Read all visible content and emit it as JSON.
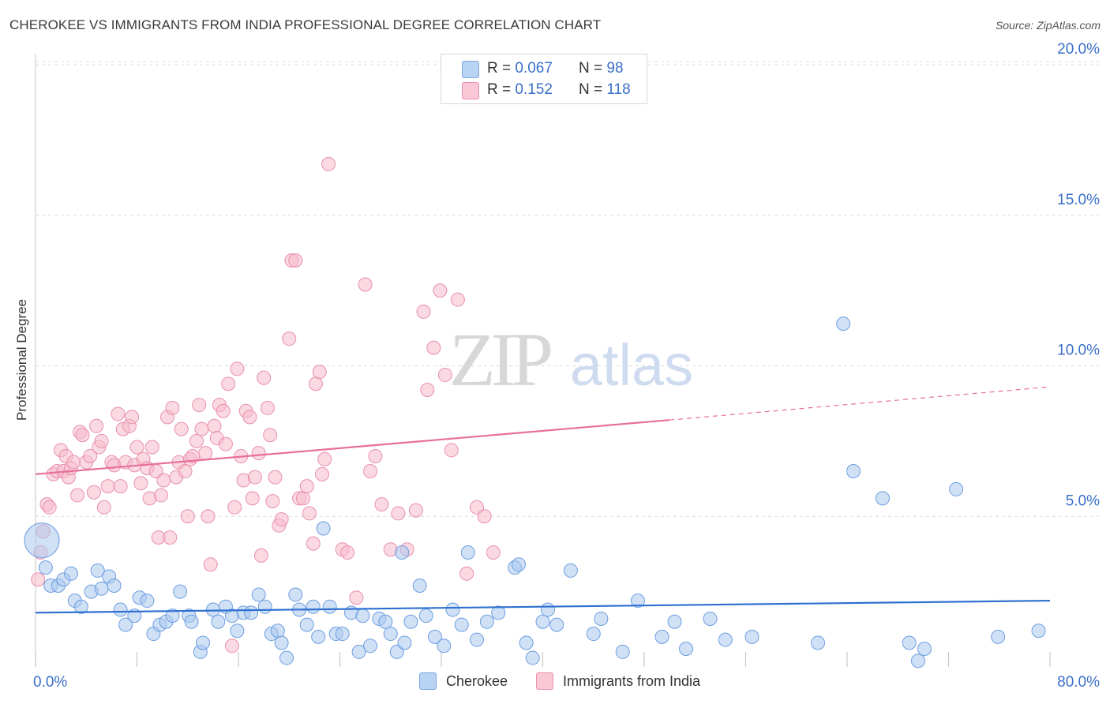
{
  "title": "CHEROKEE VS IMMIGRANTS FROM INDIA PROFESSIONAL DEGREE CORRELATION CHART",
  "source": "Source: ZipAtlas.com",
  "watermark": {
    "zip": "ZIP",
    "atlas": "atlas"
  },
  "colors": {
    "blue_fill": "#a9c8ef",
    "blue_stroke": "#6d9ee0",
    "blue_line": "#2f6fd0",
    "pink_fill": "#f6b9cc",
    "pink_stroke": "#e890ab",
    "pink_line": "#e8709a",
    "axis_label": "#3a6fc9",
    "grid": "#dcdcdc"
  },
  "legend_top": {
    "rows": [
      {
        "r_label": "R = ",
        "r_value": "0.067",
        "n_label": "N = ",
        "n_value": "98"
      },
      {
        "r_label": "R = ",
        "r_value": "0.152",
        "n_label": "N = ",
        "n_value": "118"
      }
    ]
  },
  "legend_bottom": {
    "series1": "Cherokee",
    "series2": "Immigrants from India"
  },
  "chart_data": {
    "type": "scatter",
    "title": "CHEROKEE VS IMMIGRANTS FROM INDIA PROFESSIONAL DEGREE CORRELATION CHART",
    "xlabel": "",
    "ylabel": "Professional Degree",
    "xlim": [
      0,
      80
    ],
    "ylim": [
      0,
      20
    ],
    "x_tick_labels": [
      "0.0%",
      "80.0%"
    ],
    "y_ticks": [
      5,
      10,
      15,
      20
    ],
    "y_tick_labels": [
      "5.0%",
      "10.0%",
      "15.0%",
      "20.0%"
    ],
    "grid": true,
    "series": [
      {
        "name": "Cherokee",
        "R": 0.067,
        "N": 98,
        "trend": {
          "x0": 0,
          "y0": 1.8,
          "x1": 80,
          "y1": 2.2
        },
        "points": [
          [
            0.5,
            4.2
          ],
          [
            0.8,
            3.3
          ],
          [
            1.2,
            2.7
          ],
          [
            1.8,
            2.7
          ],
          [
            2.2,
            2.9
          ],
          [
            2.8,
            3.1
          ],
          [
            3.1,
            2.2
          ],
          [
            3.6,
            2.0
          ],
          [
            4.4,
            2.5
          ],
          [
            4.9,
            3.2
          ],
          [
            5.2,
            2.6
          ],
          [
            5.8,
            3.0
          ],
          [
            6.2,
            2.7
          ],
          [
            6.7,
            1.9
          ],
          [
            7.1,
            1.4
          ],
          [
            7.8,
            1.7
          ],
          [
            8.2,
            2.3
          ],
          [
            8.8,
            2.2
          ],
          [
            9.3,
            1.1
          ],
          [
            9.8,
            1.4
          ],
          [
            10.3,
            1.5
          ],
          [
            10.8,
            1.7
          ],
          [
            11.4,
            2.5
          ],
          [
            12.1,
            1.7
          ],
          [
            12.3,
            1.5
          ],
          [
            13.0,
            0.5
          ],
          [
            13.2,
            0.8
          ],
          [
            14.0,
            1.9
          ],
          [
            14.4,
            1.5
          ],
          [
            15.0,
            2.0
          ],
          [
            15.5,
            1.7
          ],
          [
            15.9,
            1.2
          ],
          [
            16.4,
            1.8
          ],
          [
            17.0,
            1.8
          ],
          [
            17.6,
            2.4
          ],
          [
            18.1,
            2.0
          ],
          [
            18.6,
            1.1
          ],
          [
            19.1,
            1.2
          ],
          [
            19.4,
            0.8
          ],
          [
            19.8,
            0.3
          ],
          [
            20.5,
            2.4
          ],
          [
            20.8,
            1.9
          ],
          [
            21.4,
            1.4
          ],
          [
            21.9,
            2.0
          ],
          [
            22.3,
            1.0
          ],
          [
            22.7,
            4.6
          ],
          [
            23.2,
            2.0
          ],
          [
            23.7,
            1.1
          ],
          [
            24.2,
            1.1
          ],
          [
            24.9,
            1.8
          ],
          [
            25.5,
            0.5
          ],
          [
            25.8,
            1.7
          ],
          [
            26.4,
            0.7
          ],
          [
            27.1,
            1.6
          ],
          [
            27.6,
            1.5
          ],
          [
            28.0,
            1.1
          ],
          [
            28.5,
            0.5
          ],
          [
            28.9,
            3.8
          ],
          [
            29.1,
            0.8
          ],
          [
            29.6,
            1.5
          ],
          [
            30.3,
            2.7
          ],
          [
            30.8,
            1.7
          ],
          [
            31.5,
            1.0
          ],
          [
            32.2,
            0.7
          ],
          [
            32.9,
            1.9
          ],
          [
            33.6,
            1.4
          ],
          [
            34.1,
            3.8
          ],
          [
            34.8,
            0.9
          ],
          [
            35.6,
            1.5
          ],
          [
            36.5,
            1.8
          ],
          [
            37.8,
            3.3
          ],
          [
            38.1,
            3.4
          ],
          [
            38.7,
            0.8
          ],
          [
            39.2,
            0.3
          ],
          [
            40.0,
            1.5
          ],
          [
            40.4,
            1.9
          ],
          [
            41.1,
            1.4
          ],
          [
            42.2,
            3.2
          ],
          [
            44.0,
            1.1
          ],
          [
            44.6,
            1.6
          ],
          [
            46.3,
            0.5
          ],
          [
            47.5,
            2.2
          ],
          [
            49.4,
            1.0
          ],
          [
            50.4,
            1.5
          ],
          [
            51.3,
            0.6
          ],
          [
            53.2,
            1.6
          ],
          [
            54.4,
            0.9
          ],
          [
            56.5,
            1.0
          ],
          [
            61.7,
            0.8
          ],
          [
            63.7,
            11.4
          ],
          [
            64.5,
            6.5
          ],
          [
            66.8,
            5.6
          ],
          [
            68.9,
            0.8
          ],
          [
            69.6,
            0.2
          ],
          [
            70.1,
            0.6
          ],
          [
            72.6,
            5.9
          ],
          [
            75.9,
            1.0
          ],
          [
            79.1,
            1.2
          ]
        ]
      },
      {
        "name": "Immigrants from India",
        "R": 0.152,
        "N": 118,
        "trend": {
          "x0": 0,
          "y0": 6.4,
          "x1": 50,
          "y1": 8.2,
          "dash_x1": 80,
          "dash_y1": 9.3
        },
        "points": [
          [
            0.2,
            2.9
          ],
          [
            0.4,
            3.8
          ],
          [
            0.6,
            4.5
          ],
          [
            0.9,
            5.4
          ],
          [
            1.1,
            5.3
          ],
          [
            1.4,
            6.4
          ],
          [
            1.7,
            6.5
          ],
          [
            2.0,
            7.2
          ],
          [
            2.2,
            6.5
          ],
          [
            2.4,
            7.0
          ],
          [
            2.6,
            6.3
          ],
          [
            2.8,
            6.6
          ],
          [
            3.0,
            6.8
          ],
          [
            3.3,
            5.7
          ],
          [
            3.5,
            7.8
          ],
          [
            3.7,
            7.7
          ],
          [
            4.0,
            6.8
          ],
          [
            4.3,
            7.0
          ],
          [
            4.6,
            5.8
          ],
          [
            4.8,
            8.0
          ],
          [
            5.0,
            7.3
          ],
          [
            5.2,
            7.5
          ],
          [
            5.4,
            5.3
          ],
          [
            5.7,
            6.0
          ],
          [
            6.0,
            6.8
          ],
          [
            6.2,
            6.7
          ],
          [
            6.5,
            8.4
          ],
          [
            6.7,
            6.0
          ],
          [
            6.9,
            7.9
          ],
          [
            7.1,
            6.8
          ],
          [
            7.4,
            8.0
          ],
          [
            7.6,
            8.3
          ],
          [
            7.8,
            6.7
          ],
          [
            8.0,
            7.3
          ],
          [
            8.3,
            6.1
          ],
          [
            8.5,
            6.9
          ],
          [
            8.8,
            6.6
          ],
          [
            9.0,
            5.6
          ],
          [
            9.2,
            7.3
          ],
          [
            9.5,
            6.5
          ],
          [
            9.7,
            4.3
          ],
          [
            9.9,
            5.7
          ],
          [
            10.1,
            6.2
          ],
          [
            10.4,
            8.3
          ],
          [
            10.6,
            4.3
          ],
          [
            10.8,
            8.6
          ],
          [
            11.1,
            6.3
          ],
          [
            11.3,
            6.8
          ],
          [
            11.5,
            7.9
          ],
          [
            11.8,
            6.5
          ],
          [
            12.0,
            5.0
          ],
          [
            12.2,
            6.9
          ],
          [
            12.4,
            7.0
          ],
          [
            12.7,
            7.5
          ],
          [
            12.9,
            8.7
          ],
          [
            13.1,
            7.9
          ],
          [
            13.4,
            7.1
          ],
          [
            13.6,
            5.0
          ],
          [
            13.8,
            3.4
          ],
          [
            14.1,
            8.0
          ],
          [
            14.3,
            7.6
          ],
          [
            14.5,
            8.7
          ],
          [
            14.8,
            8.5
          ],
          [
            15.0,
            7.4
          ],
          [
            15.2,
            9.4
          ],
          [
            15.5,
            0.7
          ],
          [
            15.7,
            5.3
          ],
          [
            15.9,
            9.9
          ],
          [
            16.2,
            7.0
          ],
          [
            16.4,
            6.2
          ],
          [
            16.6,
            8.5
          ],
          [
            16.9,
            8.3
          ],
          [
            17.1,
            5.6
          ],
          [
            17.3,
            6.3
          ],
          [
            17.6,
            7.1
          ],
          [
            17.8,
            3.7
          ],
          [
            18.0,
            9.6
          ],
          [
            18.3,
            8.6
          ],
          [
            18.5,
            7.7
          ],
          [
            18.7,
            5.5
          ],
          [
            18.9,
            6.3
          ],
          [
            19.2,
            4.7
          ],
          [
            19.4,
            4.9
          ],
          [
            20.0,
            10.9
          ],
          [
            20.2,
            13.5
          ],
          [
            20.5,
            13.5
          ],
          [
            20.8,
            5.6
          ],
          [
            21.1,
            5.6
          ],
          [
            21.4,
            6.0
          ],
          [
            21.6,
            5.1
          ],
          [
            21.9,
            4.1
          ],
          [
            22.1,
            9.4
          ],
          [
            22.4,
            9.8
          ],
          [
            22.6,
            6.4
          ],
          [
            22.8,
            6.9
          ],
          [
            23.1,
            16.7
          ],
          [
            24.2,
            3.9
          ],
          [
            24.6,
            3.8
          ],
          [
            25.3,
            2.3
          ],
          [
            26.0,
            12.7
          ],
          [
            26.4,
            6.5
          ],
          [
            26.8,
            7.0
          ],
          [
            27.3,
            5.4
          ],
          [
            28.0,
            3.9
          ],
          [
            28.6,
            5.1
          ],
          [
            29.3,
            3.9
          ],
          [
            30.0,
            5.2
          ],
          [
            30.6,
            11.8
          ],
          [
            30.9,
            9.2
          ],
          [
            31.4,
            10.6
          ],
          [
            31.9,
            12.5
          ],
          [
            32.3,
            9.7
          ],
          [
            32.8,
            7.2
          ],
          [
            33.3,
            12.2
          ],
          [
            34.0,
            3.1
          ],
          [
            34.8,
            5.3
          ],
          [
            35.4,
            5.0
          ],
          [
            36.1,
            3.8
          ]
        ]
      }
    ]
  }
}
